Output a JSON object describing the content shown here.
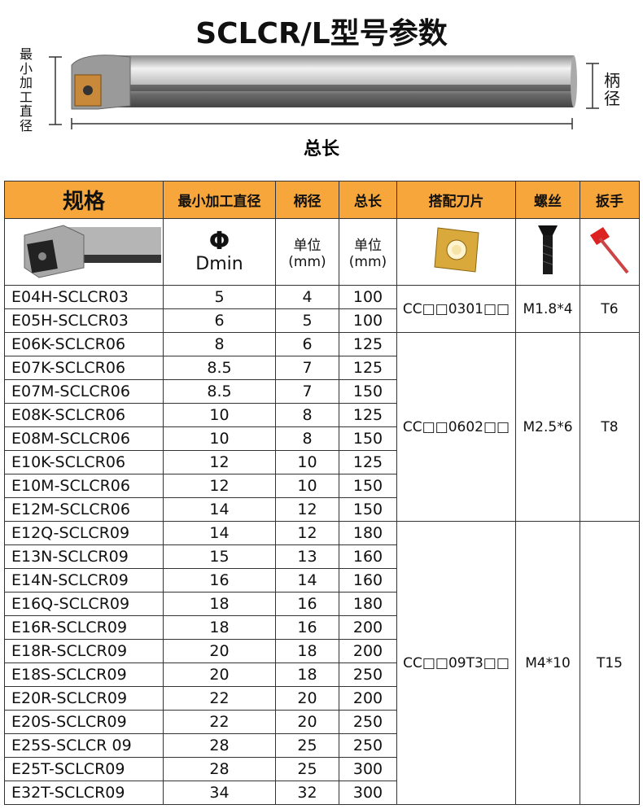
{
  "header": {
    "title": "SCLCR/L型号参数"
  },
  "drawing": {
    "min_dia_label": "最小加工直径",
    "shank_label": "柄径",
    "length_label": "总长"
  },
  "table": {
    "headers": [
      "规格",
      "最小加工直径",
      "柄径",
      "总长",
      "搭配刀片",
      "螺丝",
      "扳手"
    ],
    "subheader": {
      "dmin_symbol": "Φ",
      "dmin_text": "Dmin",
      "shank_unit": "单位",
      "shank_mm": "(mm)",
      "length_unit": "单位",
      "length_mm": "(mm)"
    },
    "groups": [
      {
        "insert": "CC□□0301□□",
        "screw": "M1.8*4",
        "wrench": "T6",
        "rows": [
          [
            "E04H-SCLCR03",
            5,
            4,
            100
          ],
          [
            "E05H-SCLCR03",
            6,
            5,
            100
          ]
        ]
      },
      {
        "insert": "CC□□0602□□",
        "screw": "M2.5*6",
        "wrench": "T8",
        "rows": [
          [
            "E06K-SCLCR06",
            8,
            6,
            125
          ],
          [
            "E07K-SCLCR06",
            8.5,
            7,
            125
          ],
          [
            "E07M-SCLCR06",
            8.5,
            7,
            150
          ],
          [
            "E08K-SCLCR06",
            10,
            8,
            125
          ],
          [
            "E08M-SCLCR06",
            10,
            8,
            150
          ],
          [
            "E10K-SCLCR06",
            12,
            10,
            125
          ],
          [
            "E10M-SCLCR06",
            12,
            10,
            150
          ],
          [
            "E12M-SCLCR06",
            14,
            12,
            150
          ]
        ]
      },
      {
        "insert": "CC□□09T3□□",
        "screw": "M4*10",
        "wrench": "T15",
        "rows": [
          [
            "E12Q-SCLCR09",
            14,
            12,
            180
          ],
          [
            "E13N-SCLCR09",
            15,
            13,
            160
          ],
          [
            "E14N-SCLCR09",
            16,
            14,
            160
          ],
          [
            "E16Q-SCLCR09",
            18,
            16,
            180
          ],
          [
            "E16R-SCLCR09",
            18,
            16,
            200
          ],
          [
            "E18R-SCLCR09",
            20,
            18,
            200
          ],
          [
            "E18S-SCLCR09",
            20,
            18,
            250
          ],
          [
            "E20R-SCLCR09",
            22,
            20,
            200
          ],
          [
            "E20S-SCLCR09",
            22,
            20,
            250
          ],
          [
            "E25S-SCLCR 09",
            28,
            25,
            250
          ],
          [
            "E25T-SCLCR09",
            28,
            25,
            300
          ],
          [
            "E32T-SCLCR09",
            34,
            32,
            300
          ]
        ]
      }
    ]
  }
}
